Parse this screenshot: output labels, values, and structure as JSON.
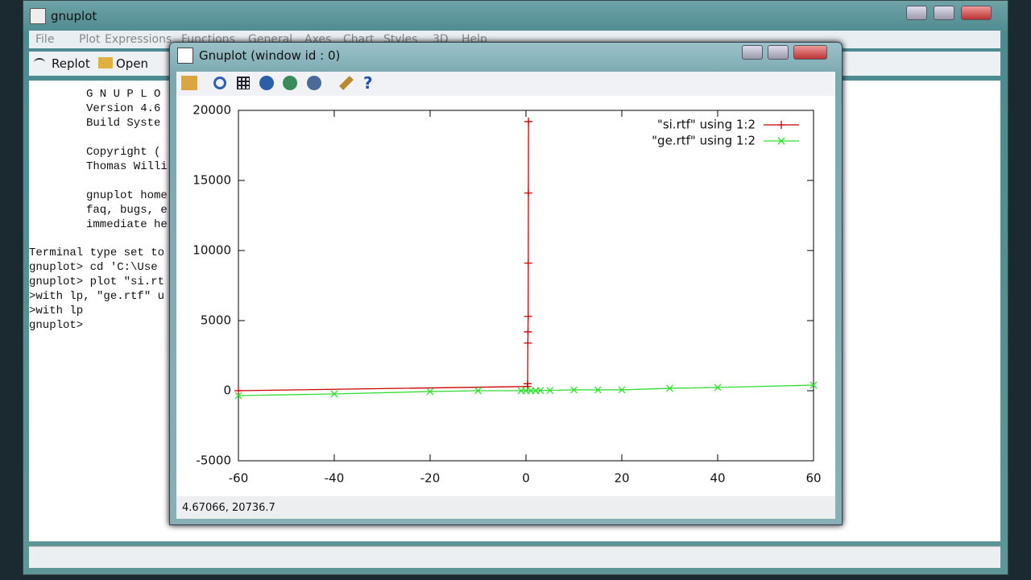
{
  "main_window": {
    "title": "gnuplot",
    "menu": [
      "File",
      "Plot",
      "Expressions",
      "Functions",
      "General",
      "Axes",
      "Chart",
      "Styles",
      "3D",
      "Help"
    ],
    "toolbar": [
      "Replot",
      "Open"
    ],
    "console": [
      "G N U P L O",
      "Version 4.6",
      "Build Syste",
      "Copyright (",
      "Thomas Willi",
      "gnuplot home",
      "faq, bugs, e",
      "immediate he",
      "Terminal type set to",
      "gnuplot> cd 'C:\\Use",
      "gnuplot> plot \"si.rt",
      ">with lp, \"ge.rtf\" u",
      ">with lp",
      "gnuplot>"
    ]
  },
  "graph_window": {
    "title": "Gnuplot (window id : 0)",
    "status": "4.67066,  20736.7"
  },
  "chart_data": {
    "type": "line",
    "xlim": [
      -60,
      60
    ],
    "ylim": [
      -5000,
      20000
    ],
    "xticks": [
      -60,
      -40,
      -20,
      0,
      20,
      40,
      60
    ],
    "yticks": [
      -5000,
      0,
      5000,
      10000,
      15000,
      20000
    ],
    "series": [
      {
        "name": "\"si.rtf\" using 1:2",
        "color": "#cc0000",
        "marker": "plus",
        "x": [
          -60,
          0.3,
          0.35,
          0.4,
          0.42,
          0.45,
          0.48,
          0.5,
          0.52
        ],
        "values": [
          0,
          300,
          500,
          3400,
          4200,
          5300,
          9100,
          14100,
          19200
        ]
      },
      {
        "name": "\"ge.rtf\" using 1:2",
        "color": "#33dd33",
        "marker": "cross",
        "x": [
          -60,
          -40,
          -20,
          -10,
          -1,
          0,
          1,
          2,
          3,
          5,
          10,
          15,
          20,
          30,
          40,
          60
        ],
        "values": [
          -350,
          -230,
          -60,
          0,
          0,
          0,
          0,
          0,
          10,
          20,
          60,
          60,
          60,
          170,
          230,
          400
        ]
      }
    ]
  }
}
